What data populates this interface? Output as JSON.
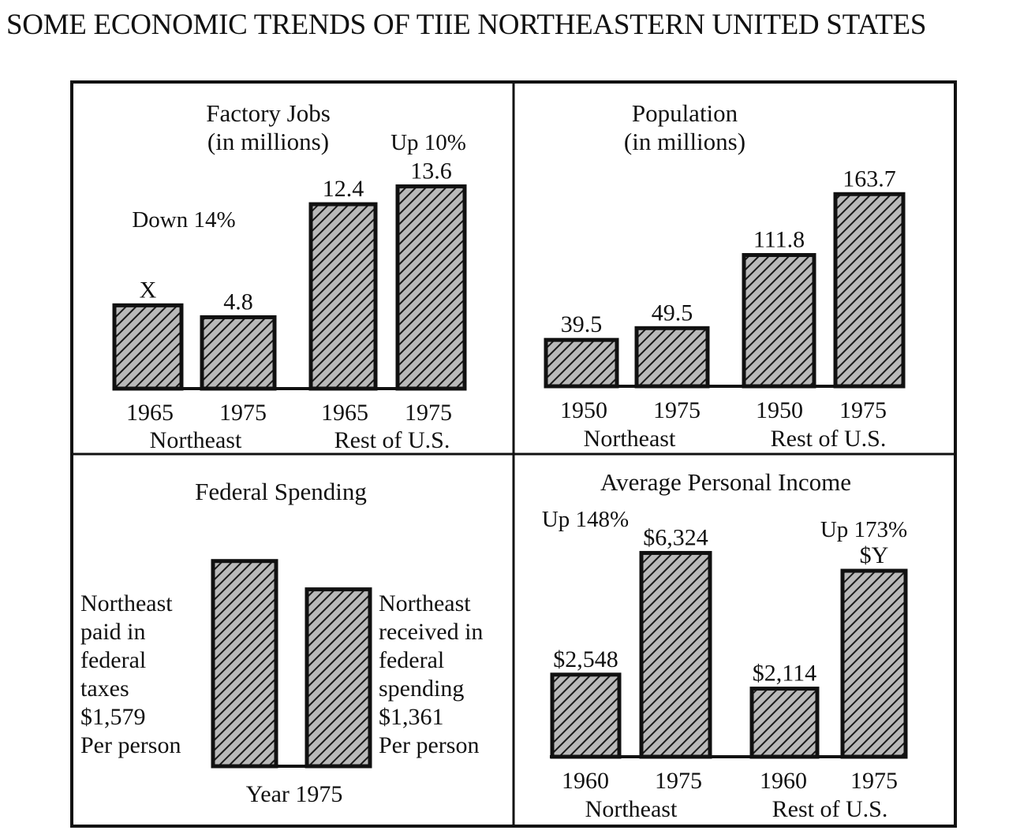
{
  "title": "SOME ECONOMIC TRENDS OF TIIE NORTHEASTERN UNITED STATES",
  "colors": {
    "ink": "#111111",
    "bar_fill": "#9a9a9a",
    "paper": "#ffffff"
  },
  "chart_data": [
    {
      "type": "bar",
      "title": [
        "Factory Jobs",
        "(in millions)"
      ],
      "groups": [
        "Northeast",
        "Rest of U.S."
      ],
      "categories": [
        "1965",
        "1975",
        "1965",
        "1975"
      ],
      "values": [
        5.6,
        4.8,
        12.4,
        13.6
      ],
      "value_labels": [
        "X",
        "4.8",
        "12.4",
        "13.6"
      ],
      "annotations": [
        "Down 14%",
        "Up 10%"
      ],
      "ylim": [
        0,
        15
      ]
    },
    {
      "type": "bar",
      "title": [
        "Population",
        "(in millions)"
      ],
      "groups": [
        "Northeast",
        "Rest of U.S."
      ],
      "categories": [
        "1950",
        "1975",
        "1950",
        "1975"
      ],
      "values": [
        39.5,
        49.5,
        111.8,
        163.7
      ],
      "value_labels": [
        "39.5",
        "49.5",
        "111.8",
        "163.7"
      ],
      "annotations": [],
      "ylim": [
        0,
        180
      ]
    },
    {
      "type": "bar",
      "title": [
        "Federal Spending"
      ],
      "categories": [
        "paid",
        "received"
      ],
      "values": [
        1579,
        1361
      ],
      "value_labels": [],
      "left_text": [
        "Northeast",
        "paid in",
        "federal",
        "taxes",
        "$1,579",
        "Per person"
      ],
      "right_text": [
        "Northeast",
        "received in",
        "federal",
        "spending",
        "$1,361",
        "Per person"
      ],
      "xlabel": "Year 1975",
      "ylim": [
        0,
        1650
      ]
    },
    {
      "type": "bar",
      "title": [
        "Average Personal Income"
      ],
      "groups": [
        "Northeast",
        "Rest of U.S."
      ],
      "categories": [
        "1960",
        "1975",
        "1960",
        "1975"
      ],
      "values": [
        2548,
        6324,
        2114,
        5771
      ],
      "value_labels": [
        "$2,548",
        "$6,324",
        "$2,114",
        "$Y"
      ],
      "annotations": [
        "Up 148%",
        "Up 173%"
      ],
      "ylim": [
        0,
        6800
      ]
    }
  ]
}
